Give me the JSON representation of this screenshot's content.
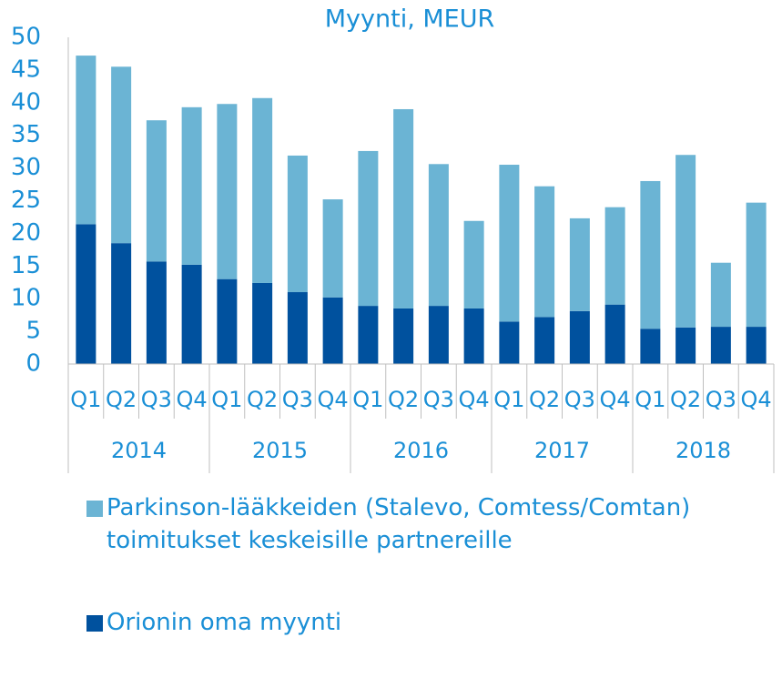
{
  "chart_data": {
    "type": "stacked-bar",
    "title": "Myynti, MEUR",
    "categories": [
      "Q1",
      "Q2",
      "Q3",
      "Q4",
      "Q1",
      "Q2",
      "Q3",
      "Q4",
      "Q1",
      "Q2",
      "Q3",
      "Q4",
      "Q1",
      "Q2",
      "Q3",
      "Q4",
      "Q1",
      "Q2",
      "Q3",
      "Q4"
    ],
    "years": [
      "2014",
      "2015",
      "2016",
      "2017",
      "2018"
    ],
    "series": [
      {
        "name": "Orionin oma myynti",
        "color": "#00519e",
        "values": [
          21.4,
          18.5,
          15.7,
          15.2,
          13.0,
          12.4,
          11.0,
          10.2,
          8.9,
          8.5,
          8.9,
          8.5,
          6.5,
          7.2,
          8.1,
          9.1,
          5.4,
          5.6,
          5.7,
          5.7
        ]
      },
      {
        "name": "Parkinson-lääkkeiden (Stalevo, Comtess/Comtan) toimitukset keskeisille partnereille",
        "color": "#6bb4d4",
        "values": [
          25.8,
          27.0,
          21.6,
          24.1,
          26.8,
          28.3,
          20.9,
          15.0,
          23.7,
          30.5,
          21.7,
          13.4,
          24.0,
          20.0,
          14.2,
          14.9,
          22.6,
          26.4,
          9.8,
          19.0
        ]
      }
    ],
    "ylim": [
      0,
      50
    ],
    "yticks": [
      0,
      5,
      10,
      15,
      20,
      25,
      30,
      35,
      40,
      45,
      50
    ]
  }
}
